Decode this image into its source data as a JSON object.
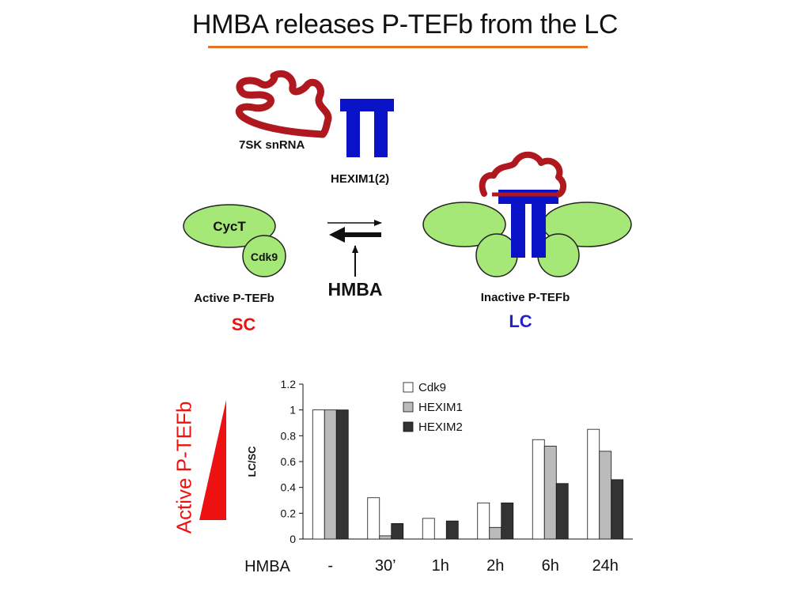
{
  "title": "HMBA releases P-TEFb from the LC",
  "diagram": {
    "rna_label": "7SK snRNA",
    "hexim_label": "HEXIM1(2)",
    "cyct_label": "CycT",
    "cdk9_label": "Cdk9",
    "active_label": "Active P-TEFb",
    "inactive_label": "Inactive P-TEFb",
    "hmba_label": "HMBA",
    "sc_label": "SC",
    "lc_label": "LC",
    "colors": {
      "rna": "#b01820",
      "hexim": "#0a12c8",
      "ptefb": "#a6e878",
      "sc": "#ee1111",
      "lc": "#2222cc"
    }
  },
  "side_label": "Active P-TEFb",
  "chart_data": {
    "type": "bar",
    "categories": [
      "-",
      "30’",
      "1h",
      "2h",
      "6h",
      "24h"
    ],
    "category_axis_label": "HMBA",
    "ylabel": "LC/SC",
    "ylim": [
      0,
      1.2
    ],
    "yticks": [
      "0",
      "0.2",
      "0.4",
      "0.6",
      "0.8",
      "1",
      "1.2"
    ],
    "legend_position": "top-center",
    "series": [
      {
        "name": "Cdk9",
        "color": "#ffffff",
        "values": [
          1.0,
          0.32,
          0.16,
          0.28,
          0.77,
          0.85
        ]
      },
      {
        "name": "HEXIM1",
        "color": "#bbbbbb",
        "values": [
          1.0,
          0.025,
          0.0,
          0.09,
          0.72,
          0.68
        ]
      },
      {
        "name": "HEXIM2",
        "color": "#333333",
        "values": [
          1.0,
          0.12,
          0.14,
          0.28,
          0.43,
          0.46
        ]
      }
    ]
  }
}
